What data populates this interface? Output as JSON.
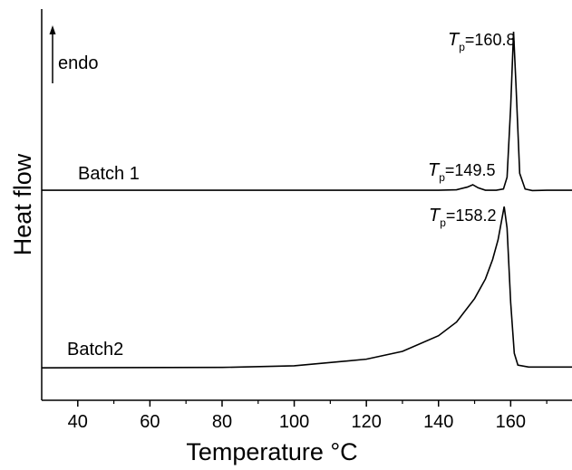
{
  "chart_data": {
    "type": "line",
    "xlabel": "Temperature °C",
    "ylabel": "Heat flow",
    "xlim": [
      30,
      177
    ],
    "xticks": [
      40,
      60,
      80,
      100,
      120,
      140,
      160
    ],
    "xminor": [
      50,
      70,
      90,
      110,
      130,
      150,
      170
    ],
    "ylim": [
      0,
      100
    ],
    "series": [
      {
        "name": "Batch 1",
        "color": "#000000",
        "x": [
          30,
          140,
          145,
          148,
          149.5,
          151,
          153,
          156,
          158,
          159,
          160,
          160.8,
          161.5,
          162.5,
          164,
          166,
          170,
          177
        ],
        "values": [
          53.7,
          53.7,
          53.8,
          54.5,
          55.1,
          54.3,
          53.7,
          53.7,
          54,
          57,
          75,
          94.2,
          80,
          58,
          54,
          53.6,
          53.7,
          53.7
        ]
      },
      {
        "name": "Batch2",
        "color": "#000000",
        "x": [
          30,
          80,
          100,
          120,
          130,
          140,
          145,
          150,
          153,
          155,
          156.5,
          157.5,
          158.2,
          159,
          160,
          161,
          162,
          165,
          177
        ],
        "values": [
          8.3,
          8.4,
          8.8,
          10.5,
          12.5,
          16.5,
          20,
          26,
          31,
          36,
          41,
          46,
          49.5,
          44,
          25,
          12,
          9,
          8.5,
          8.5
        ]
      }
    ],
    "annotations": [
      {
        "symbol": "T",
        "subscript": "p",
        "text": "=160.8"
      },
      {
        "symbol": "T",
        "subscript": "p",
        "text": "=149.5"
      },
      {
        "symbol": "T",
        "subscript": "p",
        "text": "=158.2"
      }
    ],
    "arrow_label": "endo"
  }
}
